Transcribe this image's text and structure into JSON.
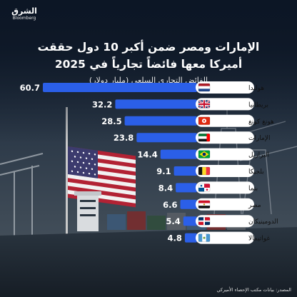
{
  "brand": {
    "name_ar": "الشرق",
    "name_en": "Bloomberg"
  },
  "title_line1": "الإمارات ومصر ضمن أكبر 10 دول حققت",
  "title_line2": "أميركا معها فائضاً تجارياً في 2025",
  "subtitle": "الفائض التجاري السلعي (مليار دولار)",
  "source": "المصدر: بيانات مكتب الإحصاء الأميركي",
  "colors": {
    "bar": "#2b5fe8",
    "label_bg": "#ffffff",
    "label_text": "#111111",
    "background": "#0f1a2a"
  },
  "chart_data": {
    "type": "bar",
    "orientation": "horizontal",
    "title": "الإمارات ومصر ضمن أكبر 10 دول حققت أميركا معها فائضاً تجارياً في 2025",
    "subtitle": "الفائض التجاري السلعي (مليار دولار)",
    "categories": [
      "هولندا",
      "بريطانيا",
      "هونغ كونغ",
      "الإمارات",
      "البرازيل",
      "بلجيكا",
      "بنما",
      "مصر",
      "الدومينيكان",
      "غواتيمالا"
    ],
    "values": [
      60.7,
      32.2,
      28.5,
      23.8,
      14.4,
      9.1,
      8.4,
      6.6,
      5.4,
      4.8
    ],
    "value_labels": [
      "60.7",
      "32.2",
      "28.5",
      "23.8",
      "14.4",
      "9.1",
      "8.4",
      "6.6",
      "5.4",
      "4.8"
    ],
    "flags": [
      "netherlands-flag-icon",
      "uk-flag-icon",
      "hong-kong-flag-icon",
      "uae-flag-icon",
      "brazil-flag-icon",
      "belgium-flag-icon",
      "panama-flag-icon",
      "egypt-flag-icon",
      "dominican-republic-flag-icon",
      "guatemala-flag-icon"
    ],
    "xlim": [
      0,
      60.7
    ],
    "grid": false
  }
}
